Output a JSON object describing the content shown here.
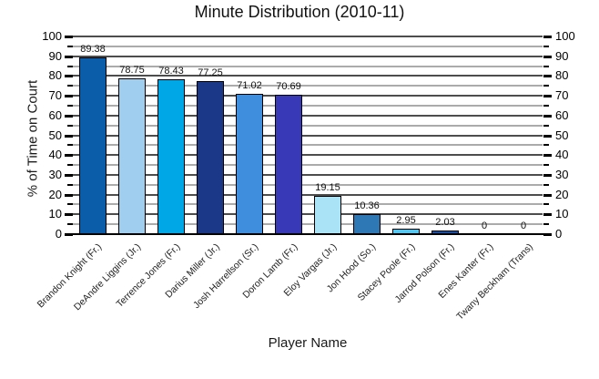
{
  "title": "Minute Distribution (2010-11)",
  "chart_data": {
    "type": "bar",
    "title": "Minute Distribution (2010-11)",
    "xlabel": "Player Name",
    "ylabel": "% of Time on Court",
    "ylim": [
      0,
      100
    ],
    "ytick_major_step": 10,
    "ytick_minor_step": 5,
    "grid": "horizontal lines every 5 units; dark gray at multiples of 10, light gray at 5s; ticks and numeric labels mirrored on left and right axes",
    "legend": "none",
    "categories": [
      "Brandon Knight (Fr.)",
      "DeAndre Liggins (Jr.)",
      "Terrence Jones (Fr.)",
      "Darius Miller (Jr.)",
      "Josh Harrellson (Sr.)",
      "Doron Lamb (Fr.)",
      "Eloy Vargas (Jr.)",
      "Jon Hood (So.)",
      "Stacey Poole (Fr.)",
      "Jarrod Polson (Fr.)",
      "Enes Kanter (Fr.)",
      "Twany Beckham (Trans)"
    ],
    "values": [
      89.38,
      78.75,
      78.43,
      77.25,
      71.02,
      70.69,
      19.15,
      10.36,
      2.95,
      2.03,
      0,
      0
    ],
    "value_labels": [
      "89.38",
      "78.75",
      "78.43",
      "77.25",
      "71.02",
      "70.69",
      "19.15",
      "10.36",
      "2.95",
      "2.03",
      "0",
      "0"
    ],
    "bar_colors": [
      "#0b5ca9",
      "#9fceee",
      "#00a7e6",
      "#1b3787",
      "#3f8edd",
      "#3739b6",
      "#aae3f5",
      "#2e78b5",
      "#55c6ef",
      "#1c4f9f",
      "#0b5ca9",
      "#0b5ca9"
    ]
  },
  "colors": {
    "background": "#ffffff",
    "major_grid": "#4d4d4d",
    "minor_grid": "#ababab",
    "axis": "#000000",
    "text": "#000000"
  }
}
